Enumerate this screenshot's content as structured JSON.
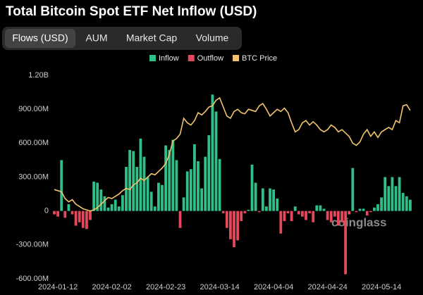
{
  "title": "Total Bitcoin Spot ETF Net Inflow (USD)",
  "tabs": [
    "Flows (USD)",
    "AUM",
    "Market Cap",
    "Volume"
  ],
  "watermark": "coinglass",
  "chart_data": {
    "type": "bar",
    "categories": [
      null,
      "2024-01-12",
      null,
      null,
      null,
      null,
      null,
      null,
      null,
      null,
      null,
      null,
      null,
      null,
      null,
      null,
      "2024-02-02",
      null,
      null,
      null,
      null,
      null,
      null,
      null,
      null,
      null,
      null,
      null,
      null,
      null,
      null,
      "2024-02-23",
      null,
      null,
      null,
      null,
      null,
      null,
      null,
      null,
      null,
      null,
      null,
      null,
      null,
      null,
      "2024-03-14",
      null,
      null,
      null,
      null,
      null,
      null,
      null,
      null,
      null,
      null,
      null,
      null,
      null,
      null,
      "2024-04-04",
      null,
      null,
      null,
      null,
      null,
      null,
      null,
      null,
      null,
      null,
      null,
      null,
      null,
      null,
      "2024-04-24",
      null,
      null,
      null,
      null,
      null,
      null,
      null,
      null,
      null,
      null,
      null,
      null,
      null,
      null,
      "2024-05-14",
      null,
      null,
      null,
      null,
      null,
      null,
      null,
      null
    ],
    "series": [
      {
        "name": "Inflow",
        "color": "#2fc08a",
        "values": [
          null,
          null,
          450000000.0,
          null,
          60000000.0,
          null,
          null,
          null,
          null,
          null,
          null,
          260000000.0,
          250000000.0,
          190000000.0,
          130000000.0,
          30000000.0,
          60000000.0,
          100000000.0,
          40000000.0,
          140000000.0,
          390000000.0,
          540000000.0,
          530000000.0,
          390000000.0,
          640000000.0,
          480000000.0,
          300000000.0,
          170000000.0,
          40000000.0,
          250000000.0,
          230000000.0,
          580000000.0,
          540000000.0,
          630000000.0,
          450000000.0,
          null,
          120000000.0,
          350000000.0,
          370000000.0,
          590000000.0,
          440000000.0,
          200000000.0,
          480000000.0,
          670000000.0,
          1030000000.0,
          880000000.0,
          460000000.0,
          null,
          null,
          null,
          null,
          null,
          null,
          null,
          10000000.0,
          410000000.0,
          250000000.0,
          null,
          200000000.0,
          40000000.0,
          200000000.0,
          190000000.0,
          110000000.0,
          null,
          null,
          null,
          null,
          40000000.0,
          null,
          null,
          null,
          null,
          null,
          50000000.0,
          50000000.0,
          20000000.0,
          null,
          null,
          null,
          null,
          null,
          null,
          null,
          380000000.0,
          null,
          20000000.0,
          20000000.0,
          null,
          null,
          30000000.0,
          60000000.0,
          120000000.0,
          300000000.0,
          220000000.0,
          300000000.0,
          220000000.0,
          300000000.0,
          160000000.0,
          130000000.0,
          100000000.0
        ]
      },
      {
        "name": "Outflow",
        "color": "#e5475b",
        "values": [
          -30000000.0,
          -50000000.0,
          null,
          -60000000.0,
          null,
          -30000000.0,
          -130000000.0,
          -100000000.0,
          -150000000.0,
          -160000000.0,
          -80000000.0,
          null,
          null,
          null,
          null,
          null,
          null,
          null,
          null,
          null,
          null,
          null,
          null,
          null,
          null,
          null,
          null,
          null,
          null,
          null,
          null,
          null,
          null,
          null,
          null,
          -150000000.0,
          null,
          null,
          null,
          null,
          null,
          null,
          null,
          null,
          null,
          null,
          null,
          -20000000.0,
          -150000000.0,
          -250000000.0,
          -320000000.0,
          -260000000.0,
          -90000000.0,
          -20000000.0,
          null,
          null,
          null,
          -10000000.0,
          null,
          null,
          null,
          null,
          null,
          -200000000.0,
          -90000000.0,
          -20000000.0,
          -90000000.0,
          null,
          -30000000.0,
          -50000000.0,
          -80000000.0,
          -20000000.0,
          -100000000.0,
          null,
          null,
          null,
          -80000000.0,
          -100000000.0,
          -50000000.0,
          -130000000.0,
          -100000000.0,
          -560000000.0,
          -30000000.0,
          null,
          -10000000.0,
          null,
          null,
          -40000000.0,
          -10000000.0,
          null,
          null,
          null,
          null,
          null,
          null,
          null,
          null,
          null,
          null,
          null
        ]
      },
      {
        "name": "BTC Price",
        "type": "line",
        "color": "#f2c46d",
        "values": [
          190000000.0,
          180000000.0,
          170000000.0,
          110000000.0,
          80000000.0,
          100000000.0,
          60000000.0,
          40000000.0,
          20000000.0,
          10000000.0,
          0,
          10000000.0,
          30000000.0,
          60000000.0,
          90000000.0,
          120000000.0,
          110000000.0,
          130000000.0,
          150000000.0,
          180000000.0,
          200000000.0,
          190000000.0,
          230000000.0,
          250000000.0,
          290000000.0,
          270000000.0,
          300000000.0,
          330000000.0,
          320000000.0,
          350000000.0,
          380000000.0,
          420000000.0,
          500000000.0,
          620000000.0,
          640000000.0,
          680000000.0,
          820000000.0,
          780000000.0,
          760000000.0,
          800000000.0,
          870000000.0,
          850000000.0,
          880000000.0,
          920000000.0,
          930000000.0,
          980000000.0,
          1000000000.0,
          920000000.0,
          840000000.0,
          820000000.0,
          880000000.0,
          900000000.0,
          870000000.0,
          860000000.0,
          900000000.0,
          890000000.0,
          880000000.0,
          930000000.0,
          950000000.0,
          900000000.0,
          840000000.0,
          870000000.0,
          900000000.0,
          880000000.0,
          910000000.0,
          870000000.0,
          780000000.0,
          700000000.0,
          720000000.0,
          780000000.0,
          800000000.0,
          760000000.0,
          790000000.0,
          760000000.0,
          720000000.0,
          700000000.0,
          720000000.0,
          760000000.0,
          740000000.0,
          700000000.0,
          720000000.0,
          690000000.0,
          660000000.0,
          600000000.0,
          580000000.0,
          610000000.0,
          680000000.0,
          720000000.0,
          660000000.0,
          700000000.0,
          650000000.0,
          700000000.0,
          720000000.0,
          740000000.0,
          720000000.0,
          800000000.0,
          780000000.0,
          930000000.0,
          940000000.0,
          890000000.0
        ]
      }
    ],
    "ylim": [
      -600000000.0,
      1200000000.0
    ],
    "yticks": [
      {
        "value": -600000000.0,
        "label": "-600.00M"
      },
      {
        "value": -300000000.0,
        "label": "-300.00M"
      },
      0,
      {
        "value": 300000000.0,
        "label": "300.00M"
      },
      {
        "value": 600000000.0,
        "label": "600.00M"
      },
      {
        "value": 900000000.0,
        "label": "900.00M"
      },
      {
        "value": 1200000000.0,
        "label": "1.20B"
      }
    ]
  }
}
